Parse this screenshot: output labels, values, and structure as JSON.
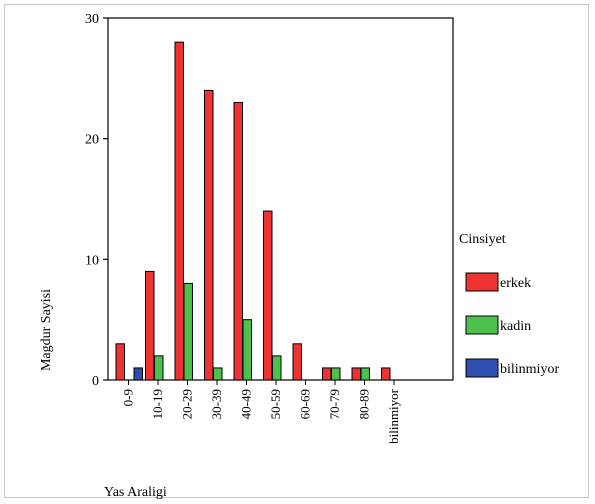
{
  "chart_data": {
    "type": "bar",
    "title": "",
    "xlabel": "Yas Araligi",
    "ylabel": "Magdur Sayisi",
    "ylim": [
      0,
      30
    ],
    "yticks": [
      0,
      10,
      20,
      30
    ],
    "grid": false,
    "legend": {
      "title": "Cinsiyet",
      "placement": "right"
    },
    "categories": [
      "0-9",
      "10-19",
      "20-29",
      "30-39",
      "40-49",
      "50-59",
      "60-69",
      "70-79",
      "80-89",
      "bilinmiyor"
    ],
    "series": [
      {
        "name": "erkek",
        "color": "#ee3333",
        "values": [
          3,
          9,
          28,
          24,
          23,
          14,
          3,
          1,
          1,
          1
        ]
      },
      {
        "name": "kadin",
        "color": "#4cc24c",
        "values": [
          0,
          2,
          8,
          1,
          5,
          2,
          0,
          1,
          1,
          0
        ]
      },
      {
        "name": "bilinmiyor",
        "color": "#2f4fb0",
        "values": [
          1,
          0,
          0,
          0,
          0,
          0,
          0,
          0,
          0,
          0
        ]
      }
    ]
  }
}
